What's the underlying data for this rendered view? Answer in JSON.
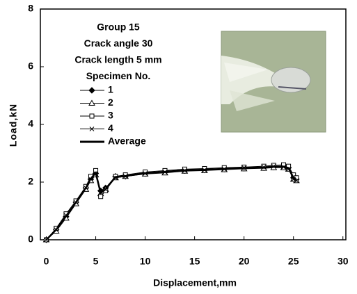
{
  "chart_data": {
    "type": "line",
    "xlabel": "Displacement,mm",
    "ylabel": "Load,kN",
    "annotations": [
      "Group 15",
      "Crack angle 30",
      "Crack length  5 mm",
      "Specimen No."
    ],
    "x": [
      0,
      1,
      2,
      3,
      4,
      4.5,
      5,
      5.5,
      6,
      7,
      8,
      10,
      12,
      14,
      16,
      18,
      20,
      22,
      23,
      24,
      24.5,
      25,
      25.3
    ],
    "series": [
      {
        "name": "1",
        "marker": "diamond",
        "color": "#000000",
        "values": [
          0,
          0.35,
          0.8,
          1.3,
          1.8,
          2.1,
          2.3,
          1.7,
          1.8,
          2.2,
          2.2,
          2.3,
          2.35,
          2.4,
          2.42,
          2.45,
          2.48,
          2.5,
          2.52,
          2.55,
          2.5,
          2.15,
          2.1
        ]
      },
      {
        "name": "2",
        "marker": "triangle",
        "color": "#000000",
        "values": [
          0,
          0.3,
          0.75,
          1.25,
          1.75,
          2.05,
          2.25,
          1.6,
          1.75,
          2.15,
          2.2,
          2.28,
          2.32,
          2.38,
          2.4,
          2.43,
          2.46,
          2.48,
          2.5,
          2.5,
          2.45,
          2.1,
          2.05
        ]
      },
      {
        "name": "3",
        "marker": "square",
        "color": "#000000",
        "values": [
          0,
          0.4,
          0.9,
          1.35,
          1.85,
          2.2,
          2.4,
          1.5,
          1.7,
          2.2,
          2.25,
          2.35,
          2.4,
          2.45,
          2.47,
          2.5,
          2.52,
          2.55,
          2.58,
          2.6,
          2.55,
          2.25,
          2.15
        ]
      },
      {
        "name": "4",
        "marker": "cross",
        "color": "#000000",
        "values": [
          0,
          0.35,
          0.85,
          1.3,
          1.8,
          2.1,
          2.3,
          1.65,
          1.75,
          2.15,
          2.2,
          2.3,
          2.35,
          2.4,
          2.42,
          2.45,
          2.5,
          2.52,
          2.55,
          2.52,
          2.45,
          2.1,
          2.05
        ]
      },
      {
        "name": "Average",
        "marker": "none",
        "color": "#000000",
        "values": [
          0,
          0.35,
          0.82,
          1.3,
          1.8,
          2.12,
          2.32,
          1.62,
          1.75,
          2.18,
          2.21,
          2.31,
          2.36,
          2.41,
          2.43,
          2.46,
          2.49,
          2.51,
          2.54,
          2.54,
          2.49,
          2.15,
          2.09
        ]
      }
    ],
    "xlim": [
      -0.6,
      30.3
    ],
    "xticks": [
      0,
      5,
      10,
      15,
      20,
      25,
      30
    ],
    "ylim": [
      0,
      8
    ],
    "yticks": [
      0,
      2,
      4,
      6,
      8
    ],
    "grid": false
  }
}
